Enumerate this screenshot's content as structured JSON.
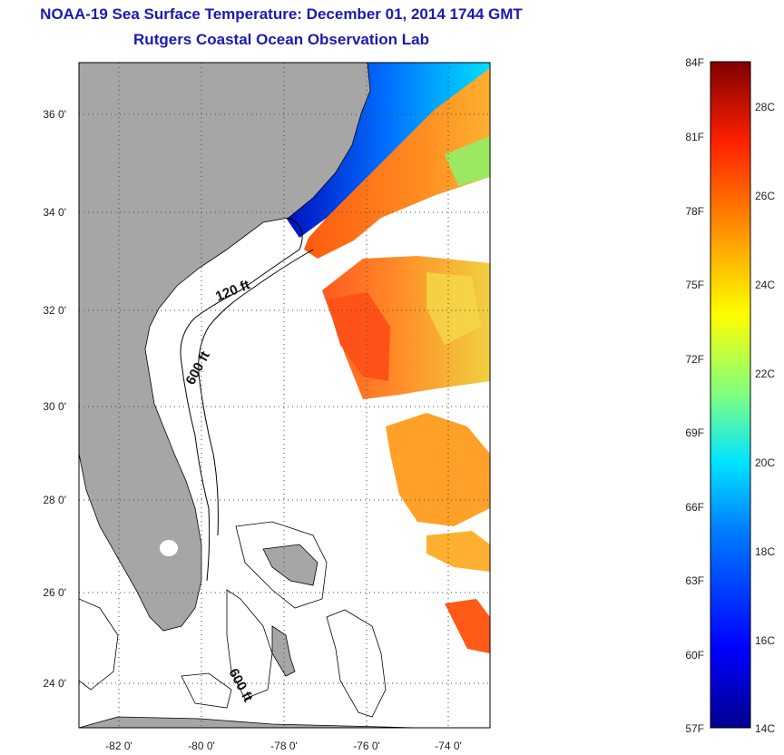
{
  "header": {
    "title": "NOAA-19 Sea Surface Temperature:  December 01, 2014 1744 GMT",
    "subtitle": "Rutgers Coastal Ocean Observation Lab"
  },
  "map": {
    "lat_ticks": [
      "36 0'",
      "34 0'",
      "32 0'",
      "30 0'",
      "28 0'",
      "26 0'",
      "24 0'"
    ],
    "lon_ticks": [
      "-82 0'",
      "-80 0'",
      "-78 0'",
      "-76 0'",
      "-74 0'"
    ],
    "contour_labels": [
      "120 ft",
      "600 ft",
      "600 ft"
    ],
    "colors": {
      "land": "#a6a6a6",
      "frame": "#000000",
      "grid": "#555555"
    }
  },
  "colorbar": {
    "fahrenheit": [
      "84F",
      "81F",
      "78F",
      "75F",
      "72F",
      "69F",
      "66F",
      "63F",
      "60F",
      "57F"
    ],
    "celsius": [
      "28C",
      "26C",
      "24C",
      "22C",
      "20C",
      "18C",
      "16C",
      "14C"
    ]
  }
}
